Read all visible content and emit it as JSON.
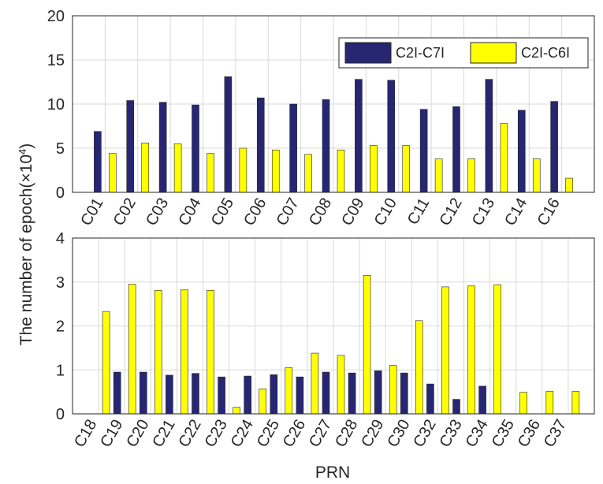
{
  "colors": {
    "series1": "#262673",
    "series2": "#ffff00",
    "grid": "#d9d9d9",
    "axis": "#262626"
  },
  "figure": {
    "ylabel": "The number of epoch(×10",
    "ylabel_exp": "4",
    "ylabel_close": ")",
    "xlabel": "PRN"
  },
  "legend": {
    "entries": [
      "C2I-C7I",
      "C2I-C6I"
    ]
  },
  "chart_data": [
    {
      "type": "bar",
      "categories": [
        "C01",
        "C02",
        "C03",
        "C04",
        "C05",
        "C06",
        "C07",
        "C08",
        "C09",
        "C10",
        "C11",
        "C12",
        "C13",
        "C14",
        "C16"
      ],
      "series": [
        {
          "name": "C2I-C7I",
          "values": [
            6.9,
            10.4,
            10.2,
            9.9,
            13.1,
            10.7,
            10.0,
            10.5,
            12.8,
            12.7,
            9.4,
            9.7,
            12.8,
            9.3,
            10.3
          ]
        },
        {
          "name": "C2I-C6I",
          "values": [
            4.4,
            5.6,
            5.5,
            4.4,
            5.0,
            4.8,
            4.3,
            4.8,
            5.3,
            5.3,
            3.8,
            3.8,
            7.8,
            3.8,
            1.6
          ]
        }
      ],
      "ylim": [
        0,
        20
      ],
      "yticks": [
        "0",
        "5",
        "10",
        "15",
        "20"
      ],
      "grid": true,
      "legend_position": "top-right"
    },
    {
      "type": "bar",
      "categories": [
        "C18",
        "C19",
        "C20",
        "C21",
        "C22",
        "C23",
        "C24",
        "C25",
        "C26",
        "C27",
        "C28",
        "C29",
        "C30",
        "C32",
        "C33",
        "C34",
        "C35",
        "C36",
        "C37"
      ],
      "series": [
        {
          "name": "C2I-C7I",
          "values": [
            0,
            0.95,
            0.95,
            0.88,
            0.92,
            0.84,
            0.86,
            0.89,
            0.84,
            0.95,
            0.93,
            0.98,
            0.93,
            0.68,
            0.33,
            0.63,
            0,
            0,
            0
          ]
        },
        {
          "name": "C2I-C6I",
          "values": [
            2.33,
            2.95,
            2.81,
            2.82,
            2.81,
            0.15,
            0.57,
            1.05,
            1.38,
            1.33,
            3.15,
            1.1,
            2.12,
            2.89,
            2.91,
            2.94,
            0.49,
            0.51,
            0.51
          ]
        }
      ],
      "ylim": [
        0,
        4
      ],
      "yticks": [
        "0",
        "1",
        "2",
        "3",
        "4"
      ],
      "grid": true
    }
  ]
}
